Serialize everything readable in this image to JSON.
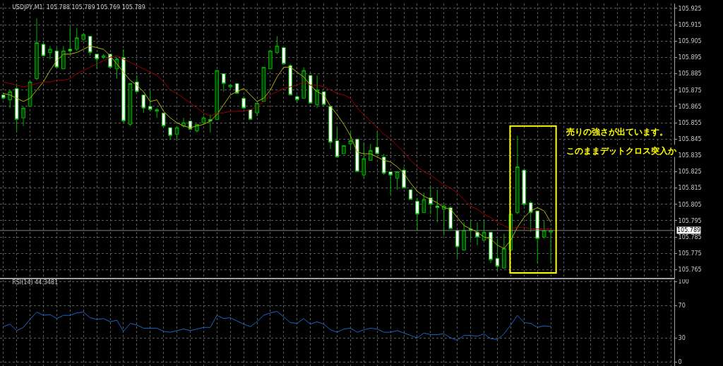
{
  "chart_data": [
    {
      "type": "candlestick",
      "title": "USDJPY,M1  105.788 105.789 105.769 105.789",
      "categories": [
        null,
        null,
        null,
        null,
        null,
        null,
        null,
        null,
        null,
        null,
        null,
        null,
        null,
        null,
        null,
        null,
        null,
        null,
        null,
        null,
        null,
        null,
        null,
        null,
        null,
        null,
        null,
        null,
        null,
        null,
        null,
        null,
        null,
        null,
        null,
        null,
        null,
        null,
        null,
        null,
        null,
        null,
        null,
        null,
        null,
        null,
        null,
        null,
        null,
        null,
        null,
        null,
        null,
        null,
        null,
        null,
        null,
        null,
        null,
        null,
        null,
        null,
        null,
        null,
        null,
        null,
        null,
        null,
        null,
        null,
        null,
        null,
        null,
        null,
        null,
        null,
        null,
        null,
        null,
        null,
        null,
        null,
        null
      ],
      "ohlc": [
        [
          105.872,
          105.873,
          105.869,
          105.87
        ],
        [
          105.869,
          105.875,
          105.864,
          105.874
        ],
        [
          105.876,
          105.879,
          105.849,
          105.857
        ],
        [
          105.858,
          105.865,
          105.853,
          105.864
        ],
        [
          105.865,
          105.88,
          105.865,
          105.88
        ],
        [
          105.882,
          105.919,
          105.881,
          105.904
        ],
        [
          105.903,
          105.904,
          105.896,
          105.896
        ],
        [
          105.898,
          105.902,
          105.894,
          105.9
        ],
        [
          105.899,
          105.901,
          105.888,
          105.889
        ],
        [
          105.888,
          105.902,
          105.888,
          105.899
        ],
        [
          105.9,
          105.914,
          105.897,
          105.899
        ],
        [
          105.9,
          105.913,
          105.899,
          105.907
        ],
        [
          105.906,
          105.91,
          105.905,
          105.909
        ],
        [
          105.908,
          105.908,
          105.896,
          105.898
        ],
        [
          105.897,
          105.897,
          105.888,
          105.894
        ],
        [
          105.895,
          105.897,
          105.894,
          105.896
        ],
        [
          105.897,
          105.897,
          105.888,
          105.889
        ],
        [
          105.888,
          105.895,
          105.882,
          105.894
        ],
        [
          105.895,
          105.9,
          105.855,
          105.856
        ],
        [
          105.854,
          105.879,
          105.853,
          105.879
        ],
        [
          105.88,
          105.884,
          105.874,
          105.874
        ],
        [
          105.872,
          105.872,
          105.861,
          105.864
        ],
        [
          105.865,
          105.875,
          105.862,
          105.863
        ],
        [
          105.862,
          105.864,
          105.858,
          105.863
        ],
        [
          105.861,
          105.861,
          105.852,
          105.853
        ],
        [
          105.852,
          105.852,
          105.845,
          105.847
        ],
        [
          105.848,
          105.853,
          105.844,
          105.852
        ],
        [
          105.853,
          105.858,
          105.852,
          105.855
        ],
        [
          105.856,
          105.856,
          105.851,
          105.851
        ],
        [
          105.85,
          105.854,
          105.849,
          105.854
        ],
        [
          105.855,
          105.859,
          105.854,
          105.858
        ],
        [
          105.857,
          105.86,
          105.849,
          105.856
        ],
        [
          105.857,
          105.887,
          105.857,
          105.887
        ],
        [
          105.885,
          105.885,
          105.874,
          105.879
        ],
        [
          105.877,
          105.878,
          105.876,
          105.878
        ],
        [
          105.879,
          105.879,
          105.873,
          105.873
        ],
        [
          105.87,
          105.871,
          105.864,
          105.864
        ],
        [
          105.863,
          105.863,
          105.857,
          105.857
        ],
        [
          105.861,
          105.867,
          105.859,
          105.867
        ],
        [
          105.868,
          105.889,
          105.868,
          105.889
        ],
        [
          105.888,
          105.899,
          105.888,
          105.899
        ],
        [
          105.898,
          105.908,
          105.897,
          105.902
        ],
        [
          105.901,
          105.901,
          105.891,
          105.891
        ],
        [
          105.89,
          105.891,
          105.872,
          105.872
        ],
        [
          105.871,
          105.872,
          105.867,
          105.869
        ],
        [
          105.87,
          105.889,
          105.87,
          105.887
        ],
        [
          105.884,
          105.884,
          105.867,
          105.867
        ],
        [
          105.866,
          105.884,
          105.864,
          105.875
        ],
        [
          105.874,
          105.874,
          105.866,
          105.866
        ],
        [
          105.865,
          105.865,
          105.839,
          105.843
        ],
        [
          105.844,
          105.852,
          105.834,
          105.834
        ],
        [
          105.836,
          105.841,
          105.836,
          105.841
        ],
        [
          105.842,
          105.849,
          105.838,
          105.844
        ],
        [
          105.845,
          105.845,
          105.825,
          105.825
        ],
        [
          105.823,
          105.843,
          105.821,
          105.833
        ],
        [
          105.832,
          105.842,
          105.832,
          105.838
        ],
        [
          105.84,
          105.85,
          105.836,
          105.836
        ],
        [
          105.834,
          105.836,
          105.823,
          105.824
        ],
        [
          105.825,
          105.825,
          105.811,
          105.823
        ],
        [
          105.821,
          105.825,
          105.814,
          105.825
        ],
        [
          105.826,
          105.828,
          105.815,
          105.815
        ],
        [
          105.814,
          105.814,
          105.808,
          105.808
        ],
        [
          105.807,
          105.809,
          105.789,
          105.799
        ],
        [
          105.8,
          105.812,
          105.8,
          105.808
        ],
        [
          105.809,
          105.816,
          105.799,
          105.805
        ],
        [
          105.804,
          105.814,
          105.794,
          105.803
        ],
        [
          105.802,
          105.805,
          105.786,
          105.804
        ],
        [
          105.803,
          105.804,
          105.79,
          105.79
        ],
        [
          105.789,
          105.789,
          105.772,
          105.779
        ],
        [
          105.777,
          105.794,
          105.777,
          105.789
        ],
        [
          105.79,
          105.795,
          105.783,
          105.789
        ],
        [
          105.788,
          105.794,
          105.78,
          105.785
        ],
        [
          105.783,
          105.795,
          105.783,
          105.788
        ],
        [
          105.788,
          105.788,
          105.769,
          105.771
        ],
        [
          105.772,
          105.784,
          105.764,
          105.767
        ],
        [
          105.766,
          105.787,
          105.766,
          105.778
        ],
        [
          105.777,
          105.8,
          105.777,
          105.799
        ],
        [
          105.8,
          105.847,
          105.799,
          105.828
        ],
        [
          105.826,
          105.827,
          105.804,
          105.805
        ],
        [
          105.806,
          105.807,
          105.788,
          105.8
        ],
        [
          105.801,
          105.801,
          105.769,
          105.784
        ],
        [
          105.785,
          105.795,
          105.784,
          105.789
        ],
        [
          105.788,
          105.789,
          105.769,
          105.789
        ]
      ],
      "color": "#00b400",
      "series": [
        {
          "type": "line",
          "color": "#b4b400",
          "values": [
            105.873,
            105.872,
            105.87,
            105.868,
            105.87,
            105.875,
            105.88,
            105.887,
            105.893,
            105.897,
            105.897,
            105.898,
            105.9,
            105.902,
            105.901,
            105.9,
            105.896,
            105.891,
            105.886,
            105.881,
            105.878,
            105.874,
            105.868,
            105.869,
            105.862,
            105.858,
            105.855,
            105.853,
            105.852,
            105.853,
            105.854,
            105.856,
            105.86,
            105.866,
            105.872,
            105.874,
            105.876,
            105.872,
            105.868,
            105.87,
            105.875,
            105.883,
            105.889,
            105.889,
            105.886,
            105.883,
            105.878,
            105.874,
            105.872,
            105.865,
            105.86,
            105.854,
            105.847,
            105.837,
            105.836,
            105.836,
            105.834,
            105.832,
            105.831,
            105.828,
            105.824,
            105.818,
            105.813,
            105.81,
            105.808,
            105.806,
            105.803,
            105.802,
            105.797,
            105.792,
            105.79,
            105.788,
            105.785,
            105.784,
            105.78,
            105.778,
            105.783,
            105.791,
            105.797,
            105.801,
            105.803,
            105.801,
            105.794
          ]
        },
        {
          "type": "line",
          "color": "#a00000",
          "values": [
            105.88,
            105.879,
            105.878,
            105.877,
            105.878,
            105.879,
            105.88,
            105.88,
            105.881,
            105.881,
            105.882,
            105.885,
            105.887,
            105.889,
            105.891,
            105.893,
            105.895,
            105.896,
            105.894,
            105.892,
            105.89,
            105.888,
            105.886,
            105.884,
            105.88,
            105.875,
            105.873,
            105.87,
            105.867,
            105.864,
            105.861,
            105.859,
            105.861,
            105.861,
            105.862,
            105.862,
            105.862,
            105.863,
            105.865,
            105.868,
            105.872,
            105.874,
            105.876,
            105.877,
            105.878,
            105.88,
            105.878,
            105.878,
            105.877,
            105.875,
            105.873,
            105.872,
            105.87,
            105.864,
            105.86,
            105.856,
            105.852,
            105.848,
            105.845,
            105.841,
            105.837,
            105.832,
            105.828,
            105.825,
            105.823,
            105.82,
            105.817,
            105.815,
            105.812,
            105.808,
            105.804,
            105.802,
            105.799,
            105.797,
            105.794,
            105.792,
            105.79,
            105.791,
            105.791,
            105.79,
            105.79,
            105.79,
            105.79
          ]
        }
      ],
      "ylim": [
        105.76,
        105.928
      ],
      "yticks": [
        105.765,
        105.775,
        105.785,
        105.795,
        105.805,
        105.815,
        105.825,
        105.835,
        105.845,
        105.855,
        105.865,
        105.875,
        105.885,
        105.895,
        105.905,
        105.915,
        105.925
      ],
      "grid": true,
      "tick_labels": "y",
      "ref_lines": [
        {
          "axis": "y",
          "value": 105.789,
          "label": "105.789",
          "color": "#808080"
        }
      ],
      "annotations": [
        "売りの強さが出ています。",
        "このままデットクロス突入か"
      ]
    },
    {
      "type": "line",
      "title": "RSI(14) 44.3481",
      "categories": [
        null,
        null,
        null,
        null,
        null,
        null,
        null,
        null,
        null,
        null,
        null,
        null,
        null,
        null,
        null,
        null,
        null,
        null,
        null,
        null,
        null,
        null,
        null,
        null,
        null,
        null,
        null,
        null,
        null,
        null,
        null,
        null,
        null,
        null,
        null,
        null,
        null,
        null,
        null,
        null,
        null,
        null,
        null,
        null,
        null,
        null,
        null,
        null,
        null,
        null,
        null,
        null,
        null,
        null,
        null,
        null,
        null,
        null,
        null,
        null,
        null,
        null,
        null,
        null,
        null,
        null,
        null,
        null,
        null,
        null,
        null,
        null,
        null,
        null,
        null,
        null,
        null,
        null,
        null,
        null,
        null,
        null,
        null
      ],
      "series": [
        {
          "color": "#1e64c8",
          "values": [
            44,
            47,
            39,
            43,
            53,
            62,
            58,
            59,
            54,
            58,
            58,
            61,
            62,
            55,
            53,
            54,
            50,
            52,
            38,
            48,
            46,
            42,
            42,
            42,
            38,
            37,
            39,
            41,
            39,
            41,
            43,
            43,
            58,
            54,
            55,
            51,
            47,
            44,
            50,
            58,
            61,
            63,
            56,
            49,
            48,
            54,
            47,
            50,
            47,
            40,
            37,
            41,
            42,
            37,
            40,
            42,
            41,
            37,
            37,
            39,
            36,
            33,
            30,
            36,
            34,
            34,
            35,
            30,
            27,
            33,
            33,
            32,
            35,
            29,
            28,
            35,
            46,
            58,
            49,
            48,
            43,
            45,
            44
          ]
        }
      ],
      "ylim": [
        -5,
        102
      ],
      "yticks": [
        0,
        30,
        70,
        100
      ],
      "grid": true,
      "tick_labels": "y"
    }
  ]
}
